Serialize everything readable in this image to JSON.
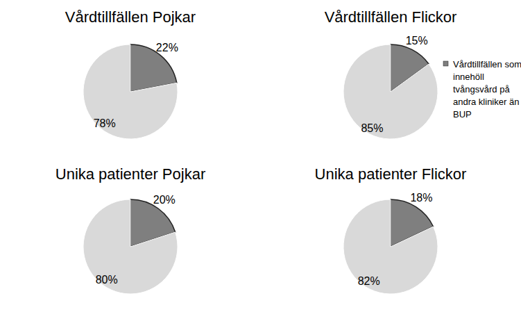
{
  "chart_data": [
    {
      "type": "pie",
      "title": "Vårdtillfällen Pojkar",
      "values": [
        22,
        78
      ],
      "value_labels": [
        "22%",
        "78%"
      ],
      "colors": [
        "#7f7f7f",
        "#d9d9d9"
      ],
      "data_labels": true
    },
    {
      "type": "pie",
      "title": "Vårdtillfällen Flickor",
      "categories": [
        "Vårdtillfällen som innehöll tvångsvård på andra kliniker än BUP",
        null
      ],
      "values": [
        15,
        85
      ],
      "value_labels": [
        "15%",
        "85%"
      ],
      "colors": [
        "#7f7f7f",
        "#d9d9d9"
      ],
      "data_labels": true,
      "legend": "right"
    },
    {
      "type": "pie",
      "title": "Unika patienter Pojkar",
      "values": [
        20,
        80
      ],
      "value_labels": [
        "20%",
        "80%"
      ],
      "colors": [
        "#7f7f7f",
        "#d9d9d9"
      ],
      "data_labels": true
    },
    {
      "type": "pie",
      "title": "Unika patienter Flickor",
      "values": [
        18,
        82
      ],
      "value_labels": [
        "18%",
        "82%"
      ],
      "colors": [
        "#7f7f7f",
        "#d9d9d9"
      ],
      "data_labels": true
    }
  ]
}
